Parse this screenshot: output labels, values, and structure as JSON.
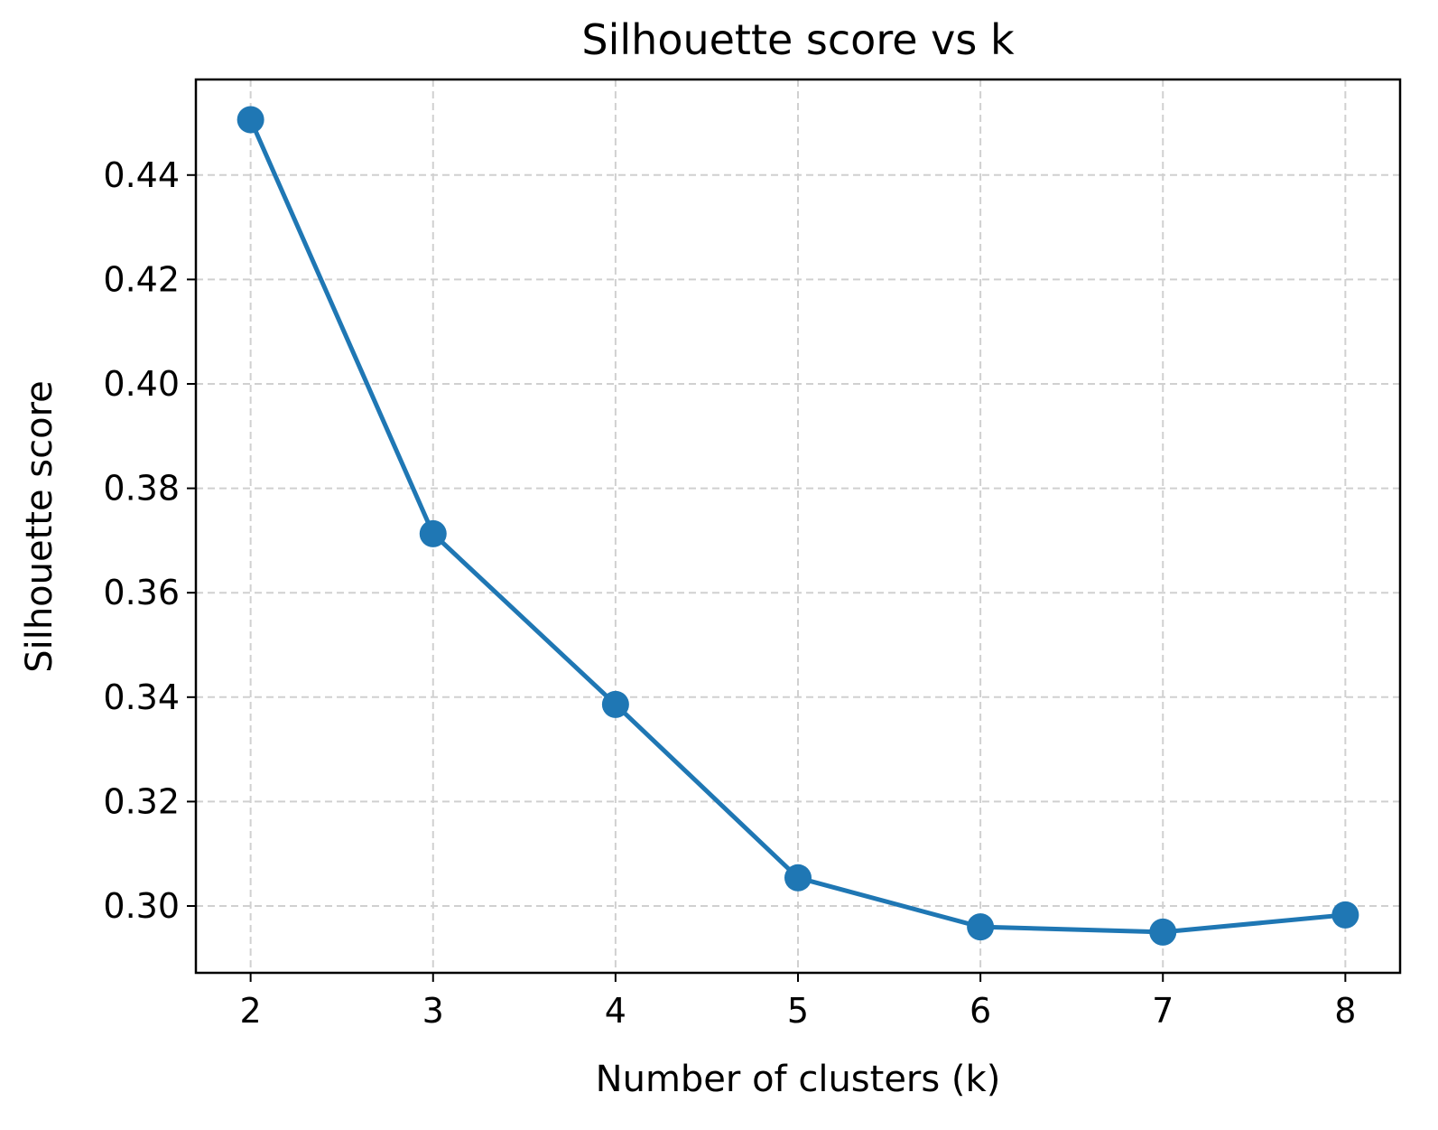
{
  "chart_data": {
    "type": "line",
    "title": "Silhouette score vs k",
    "xlabel": "Number of clusters (k)",
    "ylabel": "Silhouette score",
    "x": [
      2,
      3,
      4,
      5,
      6,
      7,
      8
    ],
    "series": [
      {
        "values": [
          0.4506,
          0.3713,
          0.3386,
          0.3054,
          0.296,
          0.295,
          0.2983
        ],
        "color": "#1f77b4",
        "marker": "circle"
      }
    ],
    "xlim": [
      1.7,
      8.3
    ],
    "ylim": [
      0.2872,
      0.4583
    ],
    "xticks": [
      2,
      3,
      4,
      5,
      6,
      7,
      8
    ],
    "xtick_labels": [
      "2",
      "3",
      "4",
      "5",
      "6",
      "7",
      "8"
    ],
    "yticks": [
      0.3,
      0.32,
      0.34,
      0.36,
      0.38,
      0.4,
      0.42,
      0.44
    ],
    "ytick_labels": [
      "0.30",
      "0.32",
      "0.34",
      "0.36",
      "0.38",
      "0.40",
      "0.42",
      "0.44"
    ],
    "grid": true,
    "grid_style": "dashed"
  }
}
